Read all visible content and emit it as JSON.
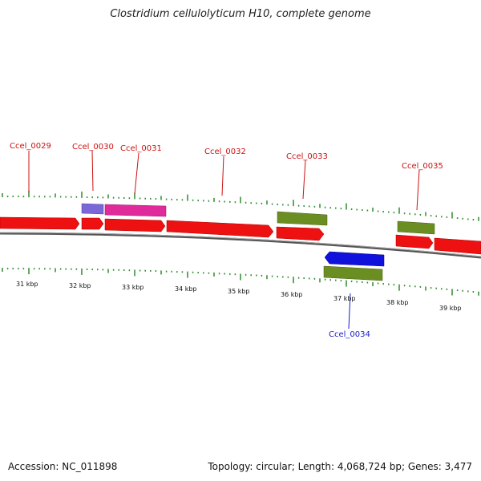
{
  "title": "Clostridium cellulolyticum H10, complete genome",
  "footer": {
    "accession_label": "Accession:",
    "accession": "NC_011898",
    "topology_label": "Topology:",
    "topology": "circular",
    "length_label": "Length:",
    "length": "4,068,724 bp",
    "genes_label": "Genes:",
    "genes": "3,477"
  },
  "colors": {
    "forward_cds": "#ee1111",
    "reverse_cds": "#1111dd",
    "gene_label_forward": "#cc1111",
    "gene_label_reverse": "#1a1acc",
    "tick": "#2e8b2e",
    "backbone": "#888888",
    "feature_purple": "#7b68d8",
    "feature_magenta": "#e02b9a",
    "feature_olive": "#6b8e23"
  },
  "gene_labels": [
    {
      "id": "Ccel_0029",
      "strand": "forward"
    },
    {
      "id": "Ccel_0030",
      "strand": "forward"
    },
    {
      "id": "Ccel_0031",
      "strand": "forward"
    },
    {
      "id": "Ccel_0032",
      "strand": "forward"
    },
    {
      "id": "Ccel_0033",
      "strand": "forward"
    },
    {
      "id": "Ccel_0035",
      "strand": "forward"
    },
    {
      "id": "Ccel_0034",
      "strand": "reverse"
    }
  ],
  "scale_labels": [
    "31 kbp",
    "32 kbp",
    "33 kbp",
    "34 kbp",
    "35 kbp",
    "36 kbp",
    "37 kbp",
    "38 kbp",
    "39 kbp"
  ]
}
